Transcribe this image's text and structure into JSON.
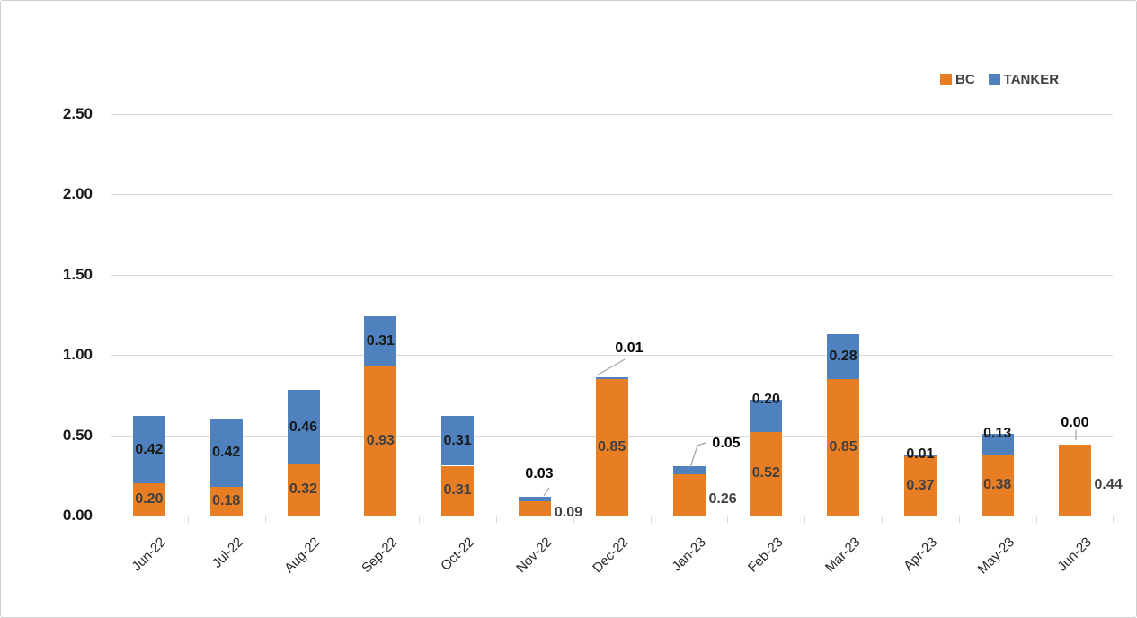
{
  "chart_data": {
    "type": "bar",
    "stacked": true,
    "title": "",
    "categories": [
      "Jun-22",
      "Jul-22",
      "Aug-22",
      "Sep-22",
      "Oct-22",
      "Nov-22",
      "Dec-22",
      "Jan-23",
      "Feb-23",
      "Mar-23",
      "Apr-23",
      "May-23",
      "Jun-23"
    ],
    "series": [
      {
        "name": "BC",
        "color": "#E87E24",
        "values": [
          0.2,
          0.18,
          0.32,
          0.93,
          0.31,
          0.09,
          0.85,
          0.26,
          0.52,
          0.85,
          0.37,
          0.38,
          0.44
        ]
      },
      {
        "name": "TANKER",
        "color": "#4E81BD",
        "values": [
          0.42,
          0.42,
          0.46,
          0.31,
          0.31,
          0.03,
          0.01,
          0.05,
          0.2,
          0.28,
          0.01,
          0.13,
          0.0
        ]
      }
    ],
    "value_format": "0.00",
    "data_labels": true,
    "ylim": [
      0,
      2.5
    ],
    "ytick_labels": [
      "0.00",
      "0.50",
      "1.00",
      "1.50",
      "2.00",
      "2.50"
    ],
    "xlabel": "",
    "ylabel": "",
    "grid": true,
    "legend_position": "top-right",
    "label_placements": {
      "BC": [
        "inside",
        "inside",
        "inside",
        "inside",
        "inside",
        "right-of-bar",
        "inside",
        "right-of-bar",
        "inside",
        "inside",
        "inside",
        "inside",
        "right-of-bar"
      ],
      "TANKER": [
        "inside",
        "inside",
        "inside",
        "inside",
        "inside",
        "callout-above",
        "callout-above",
        "callout-above",
        "top-edge",
        "inside",
        "top-edge",
        "top-edge",
        "callout-above"
      ]
    }
  },
  "colors": {
    "bc_label": "#404040",
    "tanker_label": "#1A1A1A",
    "callout_label": "#000000",
    "gridline": "#D9D9D9",
    "axis_line": "#D9D9D9",
    "leader_line": "#A6A6A6",
    "axis_text": "#262626",
    "ytick_text": "#1A1A1A",
    "legend_text": "#404040",
    "background": "#FFFFFF",
    "border": "#CFCFCF"
  }
}
